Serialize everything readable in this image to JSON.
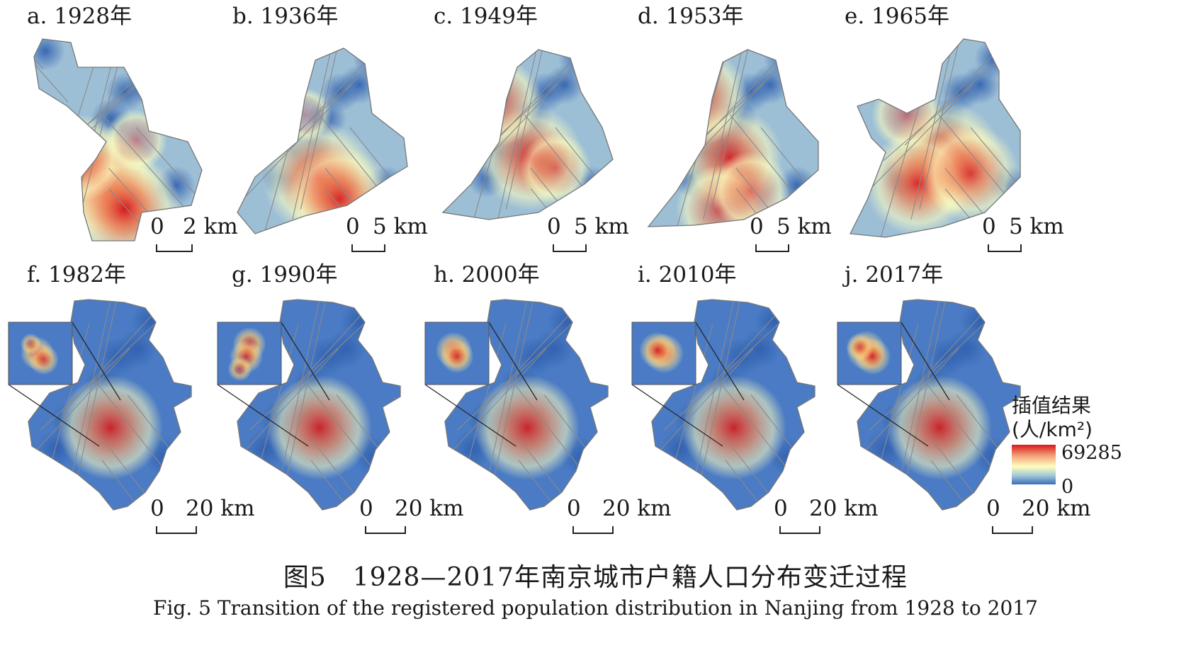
{
  "panels_top": [
    {
      "id": "a",
      "label": "a. 1928年",
      "scale": {
        "zero": "0",
        "dist": "2 km"
      },
      "hot": [
        [
          0.45,
          0.72,
          1.0
        ],
        [
          0.55,
          0.82,
          1.0
        ],
        [
          0.35,
          0.62,
          0.7
        ],
        [
          0.6,
          0.55,
          0.4
        ]
      ]
    },
    {
      "id": "b",
      "label": "b. 1936年",
      "scale": {
        "zero": "0",
        "dist": "5 km"
      },
      "hot": [
        [
          0.45,
          0.7,
          1.0
        ],
        [
          0.55,
          0.78,
          0.9
        ],
        [
          0.38,
          0.45,
          0.3
        ]
      ]
    },
    {
      "id": "c",
      "label": "c. 1949年",
      "scale": {
        "zero": "0",
        "dist": "5 km"
      },
      "hot": [
        [
          0.48,
          0.62,
          0.9
        ],
        [
          0.32,
          0.4,
          0.7
        ],
        [
          0.6,
          0.66,
          0.5
        ]
      ]
    },
    {
      "id": "d",
      "label": "d. 1953年",
      "scale": {
        "zero": "0",
        "dist": "5 km"
      },
      "hot": [
        [
          0.45,
          0.62,
          0.9
        ],
        [
          0.3,
          0.38,
          0.8
        ],
        [
          0.4,
          0.82,
          0.7
        ],
        [
          0.55,
          0.75,
          0.6
        ]
      ]
    },
    {
      "id": "e",
      "label": "e. 1965年",
      "scale": {
        "zero": "0",
        "dist": "5 km"
      },
      "hot": [
        [
          0.48,
          0.62,
          1.0
        ],
        [
          0.35,
          0.72,
          0.9
        ],
        [
          0.6,
          0.68,
          0.8
        ],
        [
          0.3,
          0.45,
          0.5
        ]
      ]
    }
  ],
  "panels_bottom": [
    {
      "id": "f",
      "label": "f. 1982年",
      "scale": {
        "zero": "0",
        "dist": "20 km"
      },
      "inset_hot": [
        [
          0.45,
          0.5,
          0.8
        ],
        [
          0.55,
          0.6,
          0.7
        ],
        [
          0.35,
          0.35,
          0.4
        ]
      ]
    },
    {
      "id": "g",
      "label": "g. 1990年",
      "scale": {
        "zero": "0",
        "dist": "20 km"
      },
      "inset_hot": [
        [
          0.5,
          0.35,
          0.8
        ],
        [
          0.45,
          0.55,
          0.8
        ],
        [
          0.35,
          0.75,
          0.5
        ]
      ]
    },
    {
      "id": "h",
      "label": "h. 2000年",
      "scale": {
        "zero": "0",
        "dist": "20 km"
      },
      "inset_hot": [
        [
          0.45,
          0.45,
          0.9
        ],
        [
          0.5,
          0.55,
          0.8
        ]
      ]
    },
    {
      "id": "i",
      "label": "i. 2010年",
      "scale": {
        "zero": "0",
        "dist": "20 km"
      },
      "inset_hot": [
        [
          0.5,
          0.5,
          1.0
        ],
        [
          0.4,
          0.45,
          0.9
        ]
      ]
    },
    {
      "id": "j",
      "label": "j. 2017年",
      "scale": {
        "zero": "0",
        "dist": "20 km"
      },
      "inset_hot": [
        [
          0.45,
          0.45,
          1.0
        ],
        [
          0.55,
          0.55,
          0.9
        ],
        [
          0.35,
          0.4,
          0.6
        ]
      ]
    }
  ],
  "legend": {
    "title_line1": "插值结果",
    "title_line2": "(人/km²)",
    "max": "69285",
    "min": "0"
  },
  "colors": {
    "low": "#3b6cb8",
    "mid": "#ffffbf",
    "high": "#d7191c",
    "boundary": "#8a8a8a"
  },
  "caption": {
    "cn": "图5　1928—2017年南京城市户籍人口分布变迁过程",
    "en": "Fig. 5   Transition of the registered population distribution in Nanjing from 1928 to 2017"
  }
}
